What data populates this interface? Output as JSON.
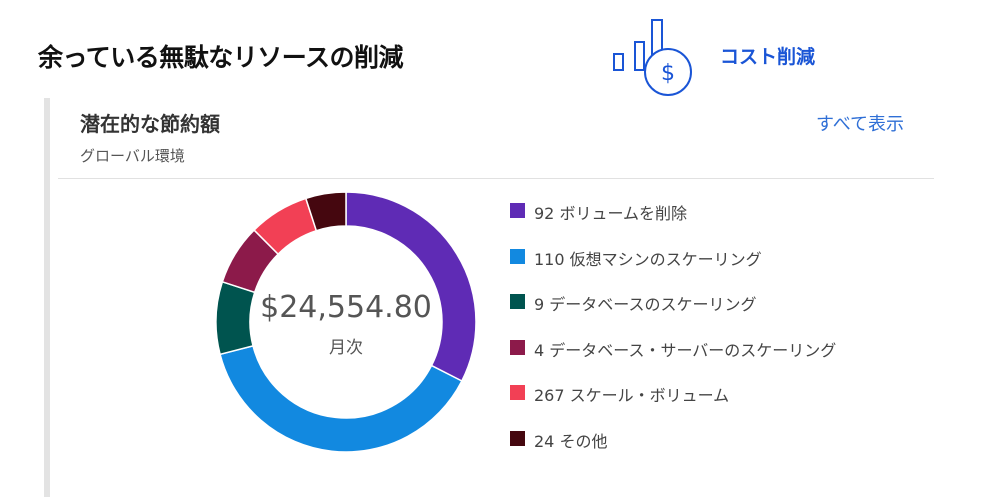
{
  "header": {
    "title": "余っている無駄なリソースの削減"
  },
  "badge": {
    "label": "コスト削減",
    "icon": "savings-chart-icon"
  },
  "card": {
    "title": "潜在的な節約額",
    "subtitle": "グローバル環境",
    "view_all": "すべて表示"
  },
  "chart_data": {
    "type": "pie",
    "donut": true,
    "center_value": "$24,554.80",
    "center_label": "月次",
    "legend_position": "right",
    "categories": [
      "92 ボリュームを削除",
      "110 仮想マシンのスケーリング",
      "9 データベースのスケーリング",
      "4 データベース・サーバーのスケーリング",
      "267 スケール・ボリューム",
      "24 その他"
    ],
    "values": [
      32.5,
      38.5,
      9.0,
      7.5,
      7.5,
      5.0
    ],
    "colors": [
      "#5f2bb5",
      "#1289e0",
      "#00544f",
      "#8c1a4a",
      "#f24055",
      "#45070f"
    ]
  }
}
